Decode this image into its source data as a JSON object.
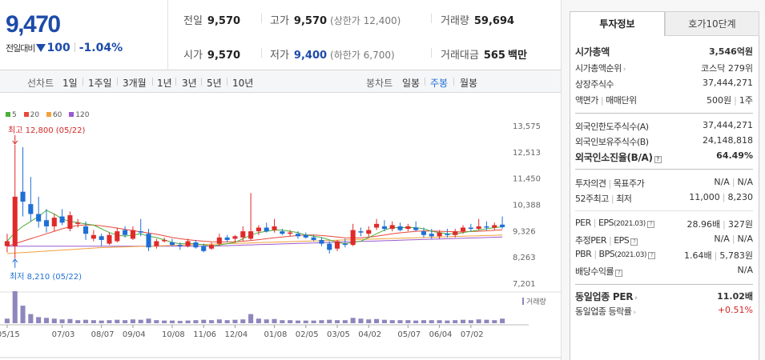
{
  "quote": {
    "price": "9,470",
    "change_label": "전일대비",
    "change_amount": "100",
    "change_pct": "-1.04%",
    "prev_close": {
      "label": "전일",
      "value": "9,570"
    },
    "open": {
      "label": "시가",
      "value": "9,570"
    },
    "high": {
      "label": "고가",
      "value": "9,570",
      "sub_label": "(상한가 12,400)"
    },
    "low": {
      "label": "저가",
      "value": "9,400",
      "sub_label": "(하한가 6,700)"
    },
    "volume": {
      "label": "거래량",
      "value": "59,694"
    },
    "amount": {
      "label": "거래대금",
      "value": "565",
      "unit": "백만"
    }
  },
  "toolbar": {
    "line_label": "선차트",
    "line_items": [
      "1일",
      "1주일",
      "3개월",
      "1년",
      "3년",
      "5년",
      "10년"
    ],
    "candle_label": "봉차트",
    "candle_items": [
      "일봉",
      "주봉",
      "월봉"
    ],
    "candle_active": "주봉"
  },
  "chart_data": {
    "type": "candlestick",
    "legend": [
      {
        "name": "5",
        "color": "#4caf37"
      },
      {
        "name": "20",
        "color": "#e8483b"
      },
      {
        "name": "60",
        "color": "#f2a13a"
      },
      {
        "name": "120",
        "color": "#9b59d0"
      }
    ],
    "y_ticks": [
      13575,
      12513,
      11450,
      10388,
      9326,
      8263,
      7201
    ],
    "ylim": [
      7201,
      13575
    ],
    "x_ticks": [
      "05/15",
      "07/03",
      "08/07",
      "09/04",
      "10/08",
      "11/06",
      "12/04",
      "01/08",
      "02/05",
      "03/05",
      "04/02",
      "05/07",
      "06/04",
      "07/02"
    ],
    "high_annotation": "최고 12,800 (05/22)",
    "low_annotation": "최저 8,210 (05/22)",
    "volume_label": "거래량",
    "up_color": "#e02a2a",
    "down_color": "#1e6fd6",
    "candles": [
      {
        "o": 8700,
        "h": 9200,
        "l": 8450,
        "c": 8900
      },
      {
        "o": 8700,
        "h": 12800,
        "l": 8210,
        "c": 10700
      },
      {
        "o": 10900,
        "h": 12700,
        "l": 9900,
        "c": 10500
      },
      {
        "o": 10400,
        "h": 11500,
        "l": 9700,
        "c": 10000
      },
      {
        "o": 10000,
        "h": 10700,
        "l": 9450,
        "c": 9700
      },
      {
        "o": 9750,
        "h": 10200,
        "l": 9250,
        "c": 9500
      },
      {
        "o": 9500,
        "h": 10000,
        "l": 9300,
        "c": 9850
      },
      {
        "o": 9900,
        "h": 10200,
        "l": 9550,
        "c": 9650
      },
      {
        "o": 9400,
        "h": 10100,
        "l": 9300,
        "c": 9950
      },
      {
        "o": 9600,
        "h": 9800,
        "l": 9450,
        "c": 9650
      },
      {
        "o": 9500,
        "h": 9700,
        "l": 8950,
        "c": 9200
      },
      {
        "o": 9000,
        "h": 9350,
        "l": 8900,
        "c": 9150
      },
      {
        "o": 9100,
        "h": 9200,
        "l": 8700,
        "c": 8950
      },
      {
        "o": 8800,
        "h": 9250,
        "l": 8750,
        "c": 9150
      },
      {
        "o": 8900,
        "h": 9450,
        "l": 8850,
        "c": 9300
      },
      {
        "o": 9350,
        "h": 9500,
        "l": 9050,
        "c": 9150
      },
      {
        "o": 9000,
        "h": 9500,
        "l": 8950,
        "c": 9350
      },
      {
        "o": 9300,
        "h": 9800,
        "l": 9100,
        "c": 9250
      },
      {
        "o": 9200,
        "h": 9400,
        "l": 8500,
        "c": 8650
      },
      {
        "o": 8700,
        "h": 9000,
        "l": 8600,
        "c": 8900
      },
      {
        "o": 8900,
        "h": 9050,
        "l": 8850,
        "c": 8950
      },
      {
        "o": 8850,
        "h": 9000,
        "l": 8700,
        "c": 8750
      },
      {
        "o": 8750,
        "h": 8850,
        "l": 8550,
        "c": 8700
      },
      {
        "o": 8700,
        "h": 9000,
        "l": 8650,
        "c": 8900
      },
      {
        "o": 8850,
        "h": 8950,
        "l": 8600,
        "c": 8650
      },
      {
        "o": 8700,
        "h": 8800,
        "l": 8450,
        "c": 8500
      },
      {
        "o": 8600,
        "h": 8850,
        "l": 8550,
        "c": 8750
      },
      {
        "o": 8800,
        "h": 9200,
        "l": 8700,
        "c": 9050
      },
      {
        "o": 9050,
        "h": 9150,
        "l": 8850,
        "c": 8950
      },
      {
        "o": 9000,
        "h": 9150,
        "l": 8850,
        "c": 9100
      },
      {
        "o": 9050,
        "h": 9500,
        "l": 8900,
        "c": 9300
      },
      {
        "o": 9000,
        "h": 10850,
        "l": 8950,
        "c": 9300
      },
      {
        "o": 9300,
        "h": 9550,
        "l": 9150,
        "c": 9450
      },
      {
        "o": 9450,
        "h": 9650,
        "l": 9250,
        "c": 9300
      },
      {
        "o": 9350,
        "h": 9800,
        "l": 9250,
        "c": 9500
      },
      {
        "o": 9300,
        "h": 9400,
        "l": 9150,
        "c": 9200
      },
      {
        "o": 9200,
        "h": 9350,
        "l": 9100,
        "c": 9250
      },
      {
        "o": 9200,
        "h": 9300,
        "l": 9000,
        "c": 9100
      },
      {
        "o": 9150,
        "h": 9250,
        "l": 9000,
        "c": 9050
      },
      {
        "o": 9050,
        "h": 9150,
        "l": 8900,
        "c": 8950
      },
      {
        "o": 8950,
        "h": 9050,
        "l": 8700,
        "c": 8800
      },
      {
        "o": 8800,
        "h": 8900,
        "l": 8400,
        "c": 8550
      },
      {
        "o": 8600,
        "h": 8950,
        "l": 8500,
        "c": 8900
      },
      {
        "o": 8800,
        "h": 9000,
        "l": 8650,
        "c": 8750
      },
      {
        "o": 8750,
        "h": 9600,
        "l": 8700,
        "c": 9350
      },
      {
        "o": 9300,
        "h": 9450,
        "l": 9100,
        "c": 9250
      },
      {
        "o": 9200,
        "h": 9500,
        "l": 9050,
        "c": 9350
      },
      {
        "o": 9450,
        "h": 9800,
        "l": 9350,
        "c": 9600
      },
      {
        "o": 9500,
        "h": 9750,
        "l": 9300,
        "c": 9400
      },
      {
        "o": 9400,
        "h": 9700,
        "l": 9300,
        "c": 9550
      },
      {
        "o": 9500,
        "h": 9650,
        "l": 9300,
        "c": 9350
      },
      {
        "o": 9400,
        "h": 9600,
        "l": 9300,
        "c": 9500
      },
      {
        "o": 9450,
        "h": 9700,
        "l": 9300,
        "c": 9350
      },
      {
        "o": 9300,
        "h": 9450,
        "l": 9050,
        "c": 9150
      },
      {
        "o": 9200,
        "h": 9400,
        "l": 9000,
        "c": 9100
      },
      {
        "o": 9100,
        "h": 9350,
        "l": 9000,
        "c": 9250
      },
      {
        "o": 9200,
        "h": 9400,
        "l": 9050,
        "c": 9150
      },
      {
        "o": 9150,
        "h": 9400,
        "l": 9050,
        "c": 9300
      },
      {
        "o": 9300,
        "h": 9550,
        "l": 9200,
        "c": 9450
      },
      {
        "o": 9450,
        "h": 9600,
        "l": 9300,
        "c": 9400
      },
      {
        "o": 9400,
        "h": 9800,
        "l": 9350,
        "c": 9500
      },
      {
        "o": 9500,
        "h": 9700,
        "l": 9350,
        "c": 9450
      },
      {
        "o": 9450,
        "h": 9650,
        "l": 9350,
        "c": 9550
      },
      {
        "o": 9570,
        "h": 9900,
        "l": 9400,
        "c": 9470
      }
    ],
    "ma5": [
      8900,
      9250,
      9500,
      9700,
      9900,
      10150,
      10000,
      9800,
      9700,
      9650,
      9600,
      9550,
      9400,
      9250,
      9150,
      9100,
      9150,
      9200,
      9100,
      9050,
      8950,
      8850,
      8800,
      8800,
      8800,
      8750,
      8700,
      8750,
      8800,
      8850,
      9000,
      9150,
      9250,
      9300,
      9350,
      9350,
      9300,
      9250,
      9150,
      9100,
      9050,
      8950,
      8850,
      8800,
      8850,
      8900,
      9050,
      9200,
      9350,
      9450,
      9450,
      9450,
      9450,
      9400,
      9300,
      9250,
      9200,
      9200,
      9250,
      9300,
      9350,
      9400,
      9450,
      9480
    ],
    "ma20": [
      8700,
      8800,
      8900,
      9000,
      9100,
      9200,
      9300,
      9400,
      9480,
      9540,
      9560,
      9550,
      9520,
      9480,
      9430,
      9380,
      9330,
      9280,
      9230,
      9180,
      9120,
      9050,
      9000,
      8960,
      8930,
      8900,
      8880,
      8870,
      8870,
      8880,
      8900,
      8930,
      8960,
      9000,
      9040,
      9070,
      9100,
      9130,
      9150,
      9150,
      9130,
      9100,
      9070,
      9040,
      9030,
      9040,
      9060,
      9100,
      9150,
      9200,
      9240,
      9270,
      9300,
      9310,
      9310,
      9300,
      9290,
      9280,
      9280,
      9290,
      9300,
      9320,
      9340,
      9360
    ],
    "ma60": [
      8400,
      8420,
      8440,
      8460,
      8480,
      8500,
      8520,
      8540,
      8560,
      8580,
      8600,
      8620,
      8640,
      8650,
      8660,
      8670,
      8680,
      8690,
      8700,
      8710,
      8720,
      8730,
      8740,
      8750,
      8760,
      8770,
      8780,
      8790,
      8800,
      8810,
      8820,
      8830,
      8840,
      8850,
      8860,
      8870,
      8880,
      8890,
      8900,
      8910,
      8920,
      8930,
      8940,
      8950,
      8960,
      8970,
      8980,
      8990,
      9000,
      9010,
      9020,
      9030,
      9040,
      9050,
      9060,
      9070,
      9080,
      9090,
      9100,
      9110,
      9120,
      9130,
      9140,
      9150
    ],
    "ma120": [
      8700,
      8700,
      8700,
      8700,
      8700,
      8700,
      8700,
      8700,
      8700,
      8700,
      8700,
      8700,
      8700,
      8700,
      8700,
      8700,
      8700,
      8700,
      8700,
      8700,
      8700,
      8700,
      8700,
      8700,
      8700,
      8700,
      8700,
      8710,
      8720,
      8730,
      8740,
      8750,
      8760,
      8770,
      8780,
      8790,
      8800,
      8810,
      8820,
      8830,
      8840,
      8850,
      8860,
      8870,
      8880,
      8890,
      8900,
      8910,
      8920,
      8930,
      8940,
      8950,
      8960,
      8970,
      8980,
      8990,
      9000,
      9010,
      9020,
      9030,
      9040,
      9050,
      9060,
      9070
    ],
    "volumes": [
      60,
      420,
      230,
      120,
      80,
      70,
      60,
      50,
      55,
      40,
      45,
      40,
      35,
      40,
      45,
      40,
      50,
      45,
      60,
      40,
      35,
      35,
      30,
      35,
      40,
      45,
      40,
      50,
      40,
      45,
      50,
      120,
      60,
      50,
      55,
      40,
      40,
      35,
      35,
      35,
      40,
      45,
      40,
      40,
      70,
      60,
      50,
      55,
      45,
      40,
      40,
      40,
      35,
      40,
      40,
      40,
      35,
      40,
      45,
      40,
      50,
      45,
      40,
      60
    ]
  },
  "info_panel": {
    "tab_active": "투자정보",
    "tab_other": "호가10단계",
    "market_cap": {
      "label": "시가총액",
      "value": "3,546억원"
    },
    "market_cap_rank": {
      "label": "시가총액순위",
      "value": "코스닥 279위"
    },
    "shares": {
      "label": "상장주식수",
      "value": "37,444,271"
    },
    "par_value": {
      "label": "액면가",
      "label2": "매매단위",
      "value": "500원",
      "value2": "1주"
    },
    "foreign_limit": {
      "label": "외국인한도주식수(A)",
      "value": "37,444,271"
    },
    "foreign_hold": {
      "label": "외국인보유주식수(B)",
      "value": "24,148,818"
    },
    "foreign_ratio": {
      "label": "외국인소진율(B/A)",
      "value": "64.49%"
    },
    "opinion": {
      "label": "투자의견",
      "label2": "목표주가",
      "value": "N/A",
      "value2": "N/A"
    },
    "week52": {
      "label": "52주최고",
      "label2": "최저",
      "value": "11,000",
      "value2": "8,230"
    },
    "per_eps": {
      "label": "PER",
      "label2": "EPS",
      "note": "(2021.03)",
      "value": "28.96배",
      "value2": "327원"
    },
    "est_per": {
      "label": "추정PER",
      "label2": "EPS",
      "value": "N/A",
      "value2": "N/A"
    },
    "pbr_bps": {
      "label": "PBR",
      "label2": "BPS",
      "note": "(2021.03)",
      "value": "1.64배",
      "value2": "5,783원"
    },
    "dividend": {
      "label": "배당수익률",
      "value": "N/A"
    },
    "sector_per": {
      "label": "동일업종 PER",
      "value": "11.02배"
    },
    "sector_change": {
      "label": "동일업종 등락률",
      "value": "+0.51%"
    }
  }
}
